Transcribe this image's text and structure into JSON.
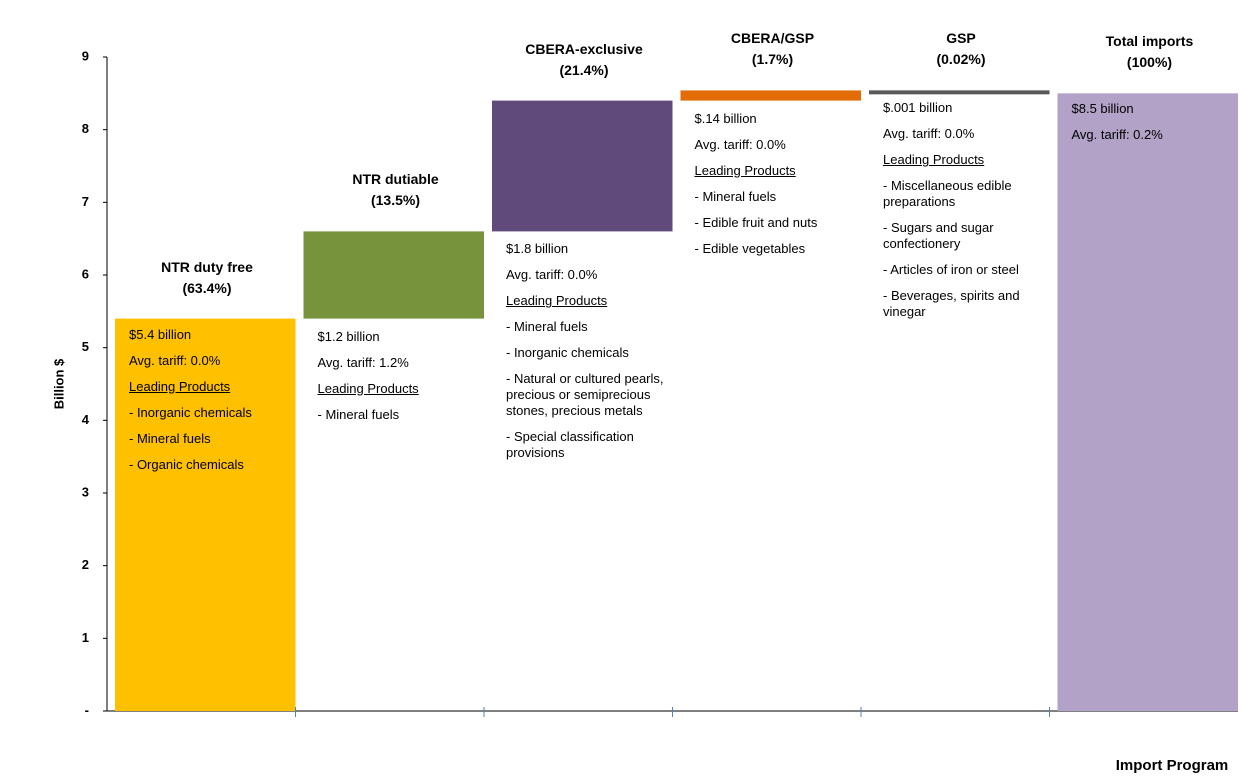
{
  "chart_data": {
    "type": "waterfall",
    "y_axis_label": "Billion $",
    "x_axis_label": "Import Program",
    "categories": [
      "NTR duty free",
      "NTR dutiable",
      "CBERA-exclusive",
      "CBERA/GSP",
      "GSP",
      "Total imports"
    ],
    "shares": [
      "(63.4%)",
      "(13.5%)",
      "(21.4%)",
      "(1.7%)",
      "(0.02%)",
      "(100%)"
    ],
    "values": [
      5.4,
      1.2,
      1.8,
      0.14,
      0.001,
      8.5
    ],
    "value_labels": [
      "$5.4 billion",
      "$1.2 billion",
      "$1.8 billion",
      "$.14 billion",
      "$.001 billion",
      "$8.5 billion"
    ],
    "is_total": [
      false,
      false,
      false,
      false,
      false,
      true
    ],
    "colors": [
      "#ffc000",
      "#77933c",
      "#604a7b",
      "#e36c09",
      "#595959",
      "#b3a2c7"
    ],
    "tariffs": [
      "Avg. tariff: 0.0%",
      "Avg. tariff: 1.2%",
      "Avg. tariff: 0.0%",
      "Avg. tariff: 0.0%",
      "Avg. tariff: 0.0%",
      "Avg. tariff: 0.2%"
    ],
    "products_heading": "Leading Products",
    "products": [
      [
        "- Inorganic chemicals",
        "- Mineral fuels",
        "- Organic chemicals"
      ],
      [
        "- Mineral fuels"
      ],
      [
        "- Mineral fuels",
        "- Inorganic chemicals",
        "- Natural or cultured pearls, precious or semiprecious stones, precious metals",
        "- Special classification provisions"
      ],
      [
        "- Mineral fuels",
        "- Edible fruit and nuts",
        "- Edible vegetables"
      ],
      [
        "- Miscellaneous edible preparations",
        "- Sugars and sugar confectionery",
        "- Articles of iron or steel",
        "- Beverages, spirits and vinegar"
      ],
      []
    ],
    "ylim": [
      0,
      9
    ],
    "yticks": [
      {
        "value": 0,
        "label": "-"
      },
      1,
      2,
      3,
      4,
      5,
      6,
      7,
      8,
      9
    ]
  }
}
